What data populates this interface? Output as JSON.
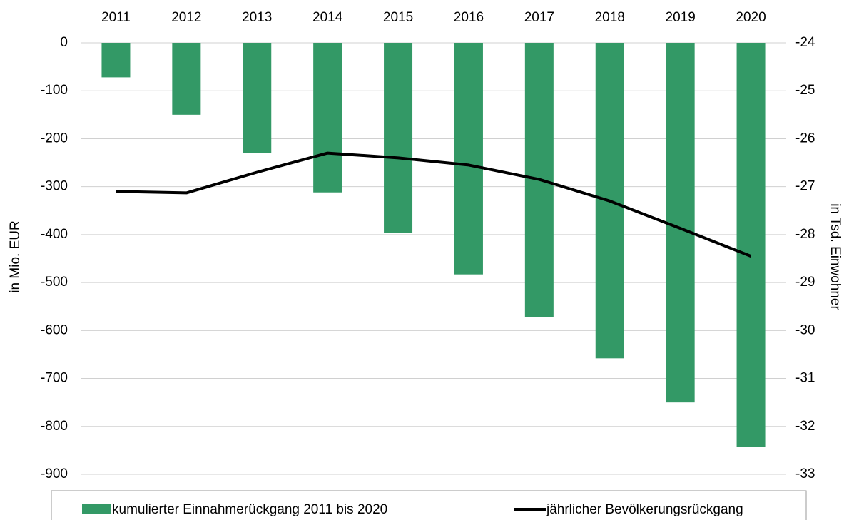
{
  "chart_data": {
    "type": "bar_line",
    "categories": [
      "2011",
      "2012",
      "2013",
      "2014",
      "2015",
      "2016",
      "2017",
      "2018",
      "2019",
      "2020"
    ],
    "series": [
      {
        "name": "kumulierter Einnahmerückgang 2011 bis 2020",
        "type": "bar",
        "color": "#339966",
        "values": [
          -72,
          -150,
          -230,
          -312,
          -397,
          -483,
          -572,
          -658,
          -750,
          -842
        ]
      },
      {
        "name": "jährlicher Bevölkerungsrückgang",
        "type": "line",
        "color": "#000000",
        "axis": "y2",
        "values": [
          -27.1,
          -27.13,
          -26.7,
          -26.3,
          -26.4,
          -26.55,
          -26.85,
          -27.3,
          -27.87,
          -28.45
        ]
      }
    ],
    "ylabel": "in Mio. EUR",
    "y2label": "in Tsd. Einwohner",
    "ylim": [
      -900,
      0
    ],
    "yticks": [
      0,
      -100,
      -200,
      -300,
      -400,
      -500,
      -600,
      -700,
      -800,
      -900
    ],
    "y2lim": [
      -33,
      -24
    ],
    "y2ticks": [
      -24,
      -25,
      -26,
      -27,
      -28,
      -29,
      -30,
      -31,
      -32,
      -33
    ],
    "grid": true,
    "legend": "bottom"
  }
}
